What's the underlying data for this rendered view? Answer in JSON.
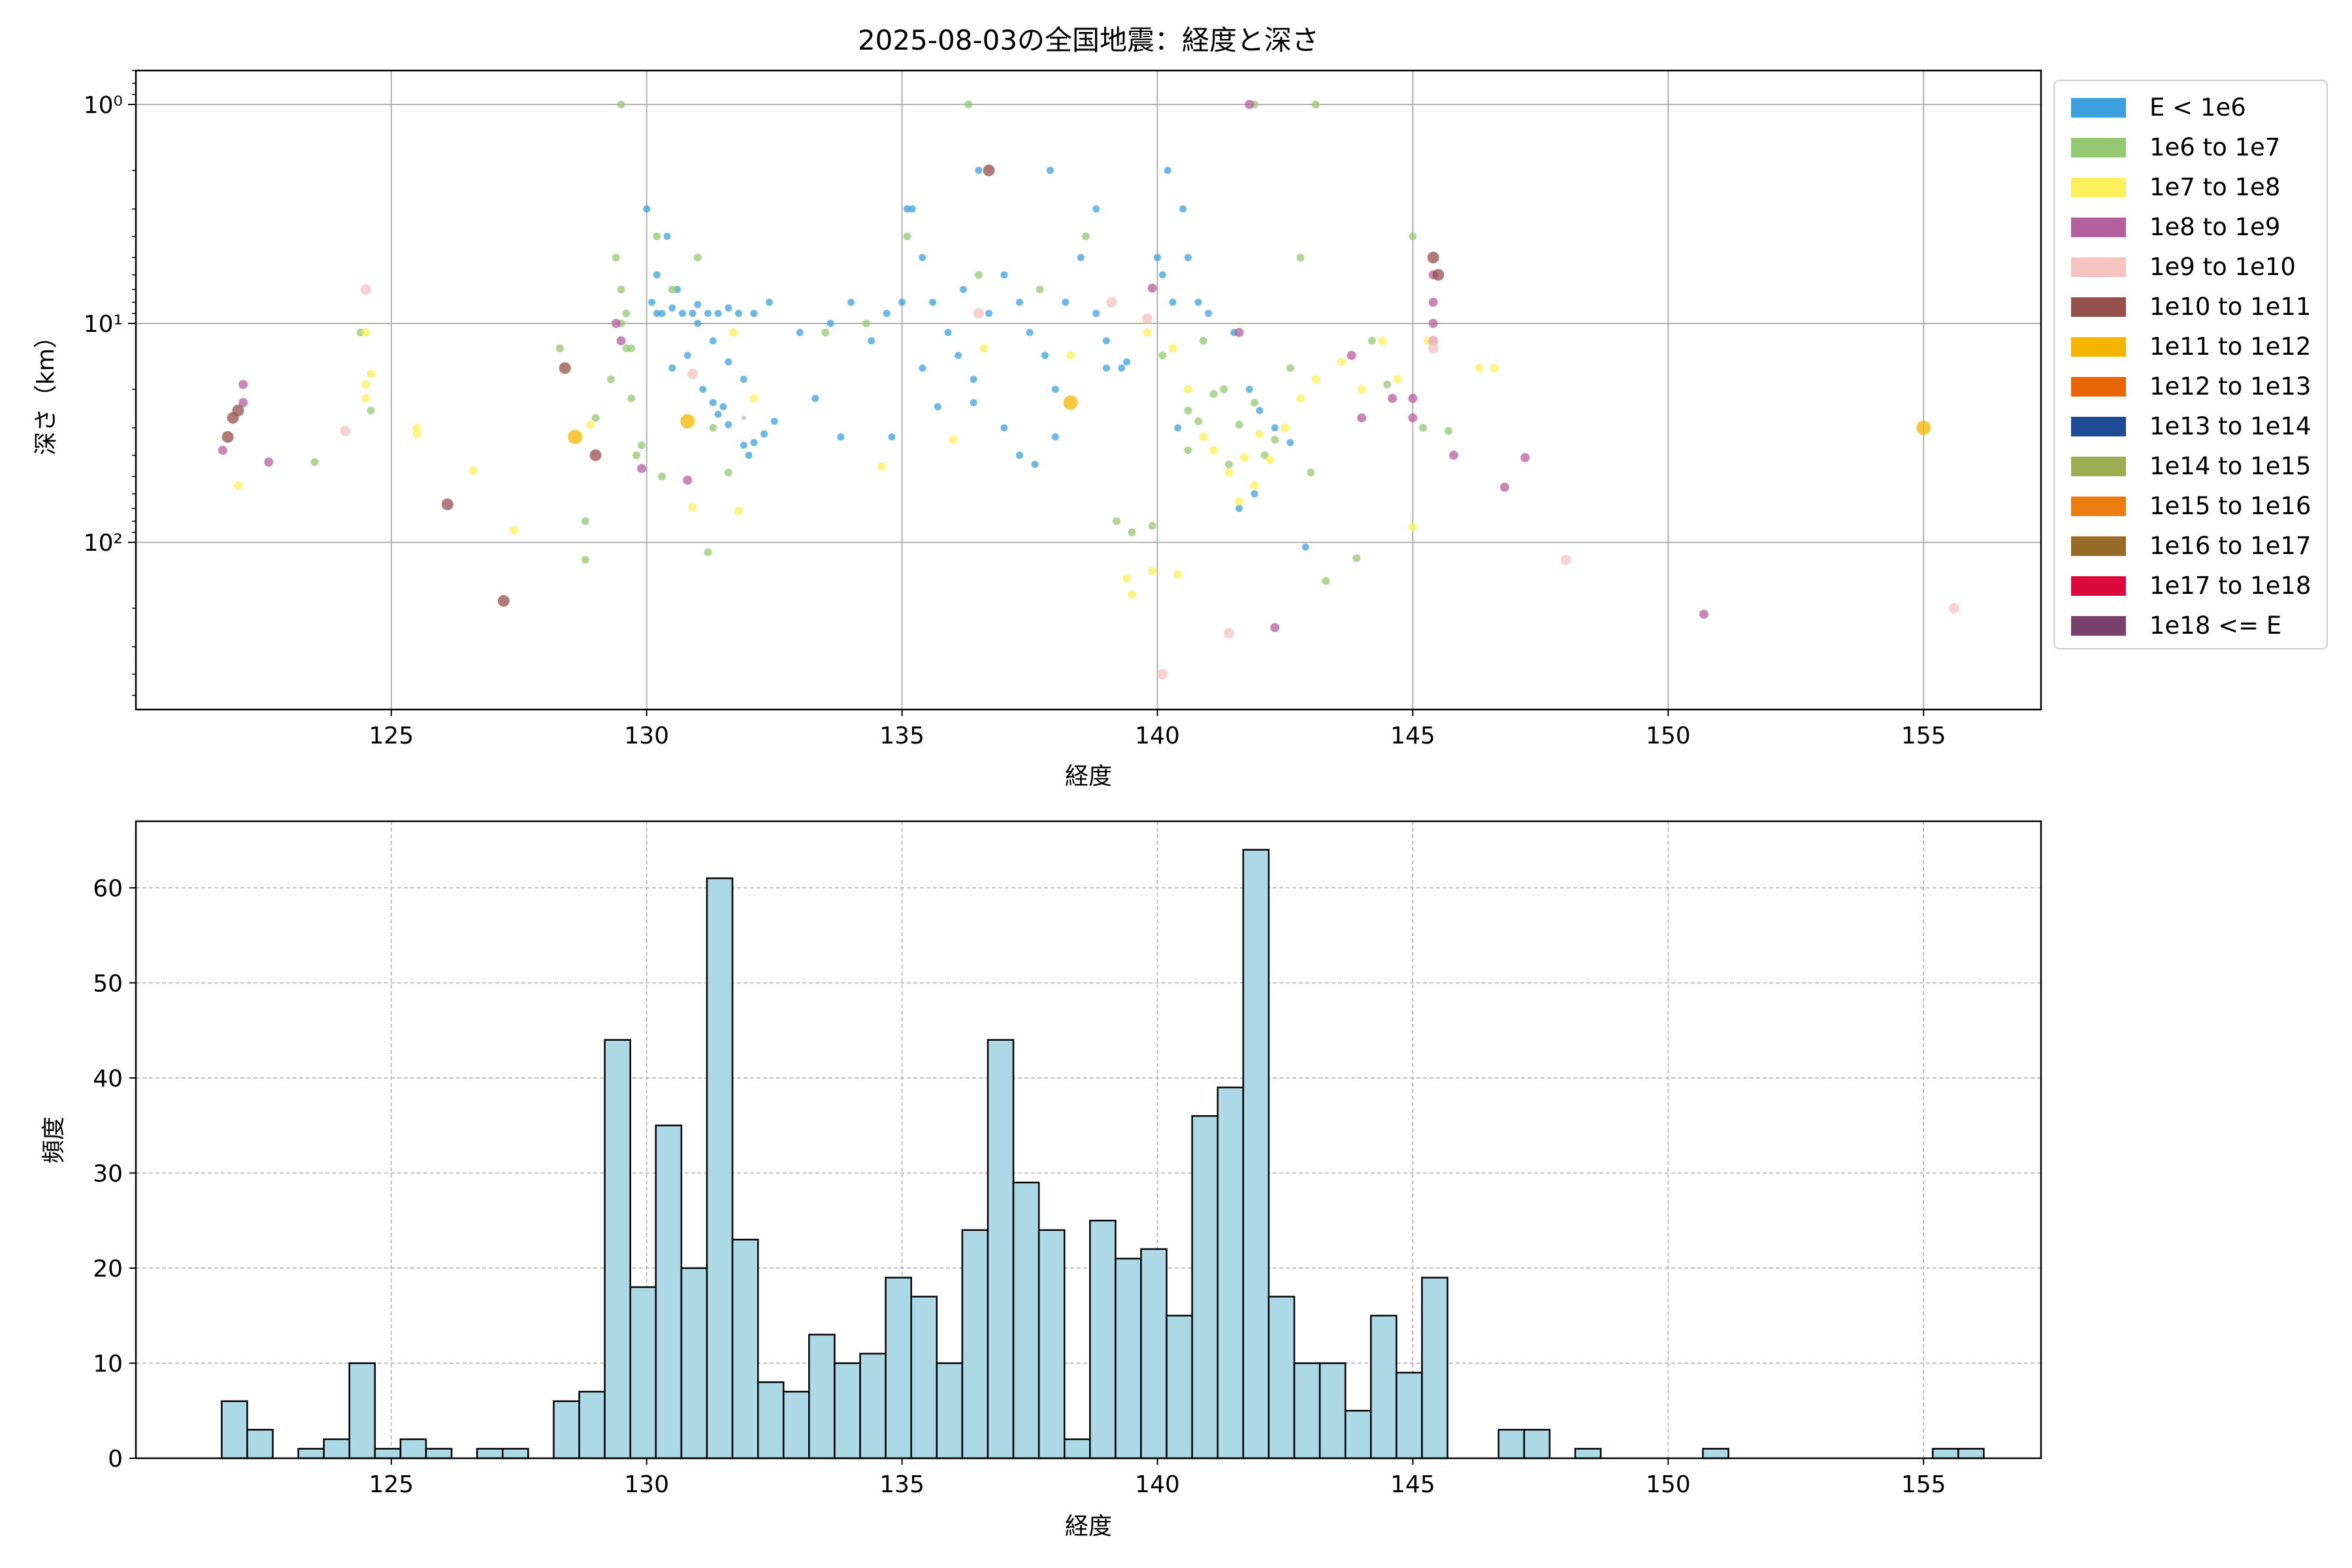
{
  "figure": {
    "title": "2025-08-03の全国地震：経度と深さ"
  },
  "chart_data": [
    {
      "type": "scatter",
      "xlabel": "経度",
      "ylabel": "深さ（km）",
      "xlim": [
        120.0,
        157.3
      ],
      "ylim_log": [
        580,
        0.7
      ],
      "yscale": "log (inverted)",
      "xticks": [
        125,
        130,
        135,
        140,
        145,
        150,
        155
      ],
      "yticks": [
        {
          "value": 1,
          "label": "10⁰"
        },
        {
          "value": 10,
          "label": "10¹"
        },
        {
          "value": 100,
          "label": "10²"
        }
      ],
      "grid": true,
      "legend": {
        "placement": "outside-right",
        "entries": [
          {
            "label": "E < 1e6",
            "color": "#3ca0dc"
          },
          {
            "label": "1e6 to 1e7",
            "color": "#94c873"
          },
          {
            "label": "1e7 to 1e8",
            "color": "#fdf05a"
          },
          {
            "label": "1e8 to 1e9",
            "color": "#b4609f"
          },
          {
            "label": "1e9 to 1e10",
            "color": "#f5c3c0"
          },
          {
            "label": "1e10 to 1e11",
            "color": "#96504c"
          },
          {
            "label": "1e11 to 1e12",
            "color": "#f5b400"
          },
          {
            "label": "1e12 to 1e13",
            "color": "#ea6408"
          },
          {
            "label": "1e13 to 1e14",
            "color": "#1e4b96"
          },
          {
            "label": "1e14 to 1e15",
            "color": "#9bad50"
          },
          {
            "label": "1e15 to 1e16",
            "color": "#ea7c10"
          },
          {
            "label": "1e16 to 1e17",
            "color": "#966c28"
          },
          {
            "label": "1e17 to 1e18",
            "color": "#dc0a3c"
          },
          {
            "label": "1e18 <= E",
            "color": "#78406c"
          }
        ]
      },
      "points": [
        [
          130.1,
          8
        ],
        [
          130.2,
          9
        ],
        [
          130.3,
          9
        ],
        [
          130.5,
          8.5
        ],
        [
          130.7,
          9
        ],
        [
          130.9,
          9
        ],
        [
          131.0,
          8.2
        ],
        [
          131.2,
          9
        ],
        [
          131.4,
          9
        ],
        [
          131.6,
          8.5
        ],
        [
          131.8,
          9
        ],
        [
          130.0,
          3
        ],
        [
          130.4,
          4
        ],
        [
          130.2,
          6
        ],
        [
          130.6,
          7
        ],
        [
          131.4,
          26
        ],
        [
          131.3,
          23
        ],
        [
          131.5,
          24
        ],
        [
          131.6,
          29
        ],
        [
          131.9,
          36
        ],
        [
          132.0,
          40
        ],
        [
          132.1,
          35
        ],
        [
          132.3,
          32
        ],
        [
          132.5,
          28
        ],
        [
          131.0,
          10
        ],
        [
          131.3,
          12
        ],
        [
          131.6,
          15
        ],
        [
          131.9,
          18
        ],
        [
          130.8,
          14
        ],
        [
          130.5,
          16
        ],
        [
          131.1,
          20
        ],
        [
          132.1,
          9
        ],
        [
          132.4,
          8
        ],
        [
          133.0,
          11
        ],
        [
          133.3,
          22
        ],
        [
          133.6,
          10
        ],
        [
          134.0,
          8
        ],
        [
          134.4,
          12
        ],
        [
          134.7,
          9
        ],
        [
          135.0,
          8
        ],
        [
          135.2,
          3
        ],
        [
          135.4,
          5
        ],
        [
          135.6,
          8
        ],
        [
          135.9,
          11
        ],
        [
          136.1,
          14
        ],
        [
          136.4,
          18
        ],
        [
          136.7,
          9
        ],
        [
          137.0,
          6
        ],
        [
          137.3,
          8
        ],
        [
          137.5,
          11
        ],
        [
          137.8,
          14
        ],
        [
          138.0,
          20
        ],
        [
          138.2,
          8
        ],
        [
          138.5,
          5
        ],
        [
          138.8,
          9
        ],
        [
          139.0,
          12
        ],
        [
          139.3,
          16
        ],
        [
          136.5,
          2
        ],
        [
          137.0,
          30
        ],
        [
          137.3,
          40
        ],
        [
          137.6,
          44
        ],
        [
          138.0,
          33
        ],
        [
          135.1,
          3
        ],
        [
          135.4,
          16
        ],
        [
          135.7,
          24
        ],
        [
          136.4,
          23
        ],
        [
          134.8,
          33
        ],
        [
          133.8,
          33
        ],
        [
          136.2,
          7
        ],
        [
          137.9,
          2
        ],
        [
          138.8,
          3
        ],
        [
          139.4,
          15
        ],
        [
          140.0,
          5
        ],
        [
          140.3,
          8
        ],
        [
          140.5,
          3
        ],
        [
          140.8,
          8
        ],
        [
          141.0,
          9
        ],
        [
          140.6,
          5
        ],
        [
          140.1,
          6
        ],
        [
          140.2,
          2
        ],
        [
          141.5,
          11
        ],
        [
          141.8,
          20
        ],
        [
          142.0,
          25
        ],
        [
          142.3,
          30
        ],
        [
          142.6,
          35
        ],
        [
          141.9,
          60
        ],
        [
          141.6,
          70
        ],
        [
          142.9,
          105
        ],
        [
          140.4,
          30
        ],
        [
          139.0,
          16
        ],
        [
          130.5,
          7
        ],
        [
          131.0,
          5
        ],
        [
          130.2,
          4
        ],
        [
          129.5,
          10
        ],
        [
          129.6,
          13
        ],
        [
          129.7,
          22
        ],
        [
          131.3,
          30
        ],
        [
          131.6,
          48
        ],
        [
          129.8,
          40
        ],
        [
          128.3,
          13
        ],
        [
          124.6,
          25
        ],
        [
          124.4,
          11
        ],
        [
          123.5,
          43
        ],
        [
          128.8,
          80
        ],
        [
          131.2,
          111
        ],
        [
          136.3,
          1
        ],
        [
          141.9,
          1
        ],
        [
          143.1,
          1
        ],
        [
          133.5,
          11
        ],
        [
          134.3,
          10
        ],
        [
          135.1,
          4
        ],
        [
          136.5,
          6
        ],
        [
          137.7,
          7
        ],
        [
          138.6,
          4
        ],
        [
          140.1,
          14
        ],
        [
          140.6,
          25
        ],
        [
          140.9,
          12
        ],
        [
          141.3,
          20
        ],
        [
          141.6,
          29
        ],
        [
          141.9,
          23
        ],
        [
          142.3,
          34
        ],
        [
          142.6,
          16
        ],
        [
          142.8,
          5
        ],
        [
          143.0,
          48
        ],
        [
          143.3,
          150
        ],
        [
          143.9,
          118
        ],
        [
          144.2,
          12
        ],
        [
          144.5,
          19
        ],
        [
          145.0,
          4
        ],
        [
          145.2,
          30
        ],
        [
          145.7,
          31
        ],
        [
          139.2,
          80
        ],
        [
          139.5,
          90
        ],
        [
          139.9,
          84
        ],
        [
          140.6,
          38
        ],
        [
          140.8,
          28
        ],
        [
          141.1,
          21
        ],
        [
          141.4,
          44
        ],
        [
          142.1,
          40
        ],
        [
          129.5,
          1
        ],
        [
          129.4,
          5
        ],
        [
          129.5,
          7
        ],
        [
          129.6,
          9
        ],
        [
          129.7,
          13
        ],
        [
          129.3,
          18
        ],
        [
          129.0,
          27
        ],
        [
          128.8,
          120
        ],
        [
          129.9,
          36
        ],
        [
          130.3,
          50
        ],
        [
          131.7,
          11
        ],
        [
          132.1,
          22
        ],
        [
          134.6,
          45
        ],
        [
          136.6,
          13
        ],
        [
          138.3,
          14
        ],
        [
          139.4,
          146
        ],
        [
          139.9,
          135
        ],
        [
          140.4,
          140
        ],
        [
          140.6,
          20
        ],
        [
          140.9,
          33
        ],
        [
          141.1,
          38
        ],
        [
          141.4,
          48
        ],
        [
          141.6,
          65
        ],
        [
          141.9,
          55
        ],
        [
          142.2,
          42
        ],
        [
          142.5,
          30
        ],
        [
          142.8,
          22
        ],
        [
          143.1,
          18
        ],
        [
          143.6,
          15
        ],
        [
          144.0,
          20
        ],
        [
          144.4,
          12
        ],
        [
          144.7,
          18
        ],
        [
          145.3,
          12
        ],
        [
          146.3,
          16
        ],
        [
          146.6,
          16
        ],
        [
          145.0,
          85
        ],
        [
          122.0,
          55
        ],
        [
          124.5,
          22
        ],
        [
          124.6,
          17
        ],
        [
          125.5,
          30
        ],
        [
          141.7,
          41
        ],
        [
          142.0,
          32
        ],
        [
          140.3,
          13
        ],
        [
          124.5,
          11
        ],
        [
          124.5,
          19
        ],
        [
          125.5,
          32
        ],
        [
          126.6,
          47
        ],
        [
          127.4,
          88
        ],
        [
          128.9,
          29
        ],
        [
          130.9,
          69
        ],
        [
          131.8,
          72
        ],
        [
          136.0,
          34
        ],
        [
          139.5,
          173
        ],
        [
          139.8,
          11
        ],
        [
          141.6,
          11
        ],
        [
          141.8,
          1
        ],
        [
          142.3,
          245
        ],
        [
          144.6,
          22
        ],
        [
          145.0,
          22
        ],
        [
          145.4,
          6
        ],
        [
          145.4,
          8
        ],
        [
          145.4,
          10
        ],
        [
          145.4,
          12
        ],
        [
          145.8,
          40
        ],
        [
          146.8,
          56
        ],
        [
          147.2,
          41
        ],
        [
          143.8,
          14
        ],
        [
          139.9,
          6.9
        ],
        [
          121.7,
          38
        ],
        [
          122.1,
          19
        ],
        [
          122.1,
          23
        ],
        [
          129.9,
          46
        ],
        [
          130.8,
          52
        ],
        [
          144.0,
          27
        ],
        [
          150.7,
          213
        ],
        [
          145.0,
          27
        ],
        [
          129.4,
          10
        ],
        [
          129.5,
          12
        ],
        [
          122.6,
          43
        ],
        [
          124.1,
          31
        ],
        [
          130.9,
          17
        ],
        [
          139.1,
          8
        ],
        [
          140.1,
          400
        ],
        [
          141.4,
          260
        ],
        [
          145.4,
          12
        ],
        [
          145.4,
          13
        ],
        [
          148.0,
          120
        ],
        [
          155.6,
          200
        ],
        [
          139.8,
          9.5
        ],
        [
          136.5,
          9
        ],
        [
          124.5,
          7
        ],
        [
          129.0,
          40
        ],
        [
          145.4,
          5
        ],
        [
          145.5,
          6
        ],
        [
          121.9,
          27
        ],
        [
          121.8,
          33
        ],
        [
          122.0,
          25
        ],
        [
          128.4,
          16
        ],
        [
          126.1,
          67
        ],
        [
          127.2,
          185
        ],
        [
          136.7,
          2
        ],
        [
          138.3,
          23
        ],
        [
          155.0,
          30
        ],
        [
          128.6,
          33
        ],
        [
          130.8,
          28
        ],
        [
          131.9,
          27
        ]
      ],
      "point_classes": [
        0,
        0,
        0,
        0,
        0,
        0,
        0,
        0,
        0,
        0,
        0,
        0,
        0,
        0,
        0,
        0,
        0,
        0,
        0,
        0,
        0,
        0,
        0,
        0,
        0,
        0,
        0,
        0,
        0,
        0,
        0,
        0,
        0,
        0,
        0,
        0,
        0,
        0,
        0,
        0,
        0,
        0,
        0,
        0,
        0,
        0,
        0,
        0,
        0,
        0,
        0,
        0,
        0,
        0,
        0,
        0,
        0,
        0,
        0,
        0,
        0,
        0,
        0,
        0,
        0,
        0,
        0,
        0,
        0,
        0,
        0,
        0,
        0,
        0,
        0,
        0,
        0,
        0,
        0,
        0,
        0,
        0,
        0,
        0,
        0,
        0,
        0,
        0,
        0,
        0,
        1,
        1,
        1,
        1,
        1,
        1,
        1,
        1,
        1,
        1,
        1,
        1,
        1,
        1,
        1,
        1,
        1,
        1,
        1,
        1,
        1,
        1,
        1,
        1,
        1,
        1,
        1,
        1,
        1,
        1,
        1,
        1,
        1,
        1,
        1,
        1,
        1,
        1,
        1,
        1,
        1,
        1,
        1,
        1,
        1,
        1,
        1,
        1,
        1,
        1,
        1,
        1,
        1,
        1,
        1,
        1,
        1,
        1,
        1,
        2,
        2,
        2,
        2,
        2,
        2,
        2,
        2,
        2,
        2,
        2,
        2,
        2,
        2,
        2,
        2,
        2,
        2,
        2,
        2,
        2,
        2,
        2,
        2,
        2,
        2,
        2,
        2,
        2,
        2,
        2,
        2,
        2,
        2,
        2,
        2,
        2,
        2,
        2,
        2,
        2,
        2,
        2,
        2,
        3,
        3,
        3,
        3,
        3,
        3,
        3,
        3,
        3,
        3,
        3,
        3,
        3,
        3,
        3,
        3,
        3,
        3,
        3,
        3,
        3,
        3,
        3,
        3,
        3,
        4,
        4,
        4,
        4,
        4,
        4,
        4,
        4,
        4,
        4,
        4,
        4,
        5,
        5,
        5,
        5,
        5,
        5,
        5,
        5,
        5,
        5,
        6,
        6,
        6,
        6,
        -1,
        -1,
        -1,
        -1,
        -1,
        -1,
        -1,
        -1,
        -1,
        -1,
        -1,
        -1
      ]
    },
    {
      "type": "bar",
      "xlabel": "経度",
      "ylabel": "頻度",
      "xlim": [
        120.0,
        157.3
      ],
      "ylim": [
        0,
        67
      ],
      "xticks": [
        125,
        130,
        135,
        140,
        145,
        150,
        155
      ],
      "yticks": [
        0,
        10,
        20,
        30,
        40,
        50,
        60
      ],
      "grid": true,
      "bar_color": "#add8e6",
      "bin_start": 121.68,
      "bin_width": 0.5,
      "counts": [
        6,
        3,
        0,
        1,
        2,
        10,
        1,
        2,
        1,
        0,
        1,
        1,
        0,
        6,
        7,
        44,
        18,
        35,
        20,
        61,
        23,
        8,
        7,
        13,
        10,
        11,
        19,
        17,
        10,
        24,
        44,
        29,
        24,
        2,
        25,
        21,
        22,
        15,
        36,
        39,
        64,
        17,
        10,
        10,
        5,
        15,
        9,
        19,
        0,
        0,
        3,
        3,
        0,
        1,
        0,
        0,
        0,
        0,
        1,
        0,
        0,
        0,
        0,
        0,
        0,
        0,
        0,
        1,
        1
      ]
    }
  ]
}
